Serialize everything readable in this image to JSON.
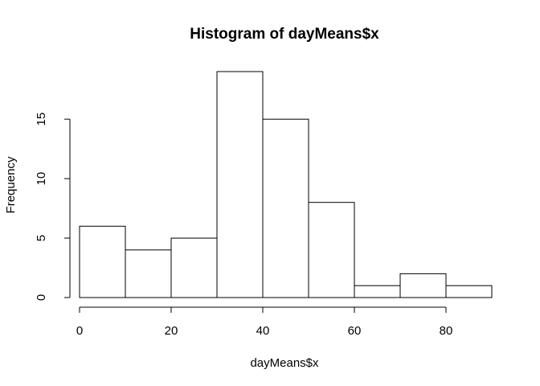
{
  "chart_data": {
    "type": "bar",
    "title": "Histogram of dayMeans$x",
    "xlabel": "dayMeans$x",
    "ylabel": "Frequency",
    "bins": [
      {
        "from": 0,
        "to": 10,
        "count": 6
      },
      {
        "from": 10,
        "to": 20,
        "count": 4
      },
      {
        "from": 20,
        "to": 30,
        "count": 5
      },
      {
        "from": 30,
        "to": 40,
        "count": 19
      },
      {
        "from": 40,
        "to": 50,
        "count": 15
      },
      {
        "from": 50,
        "to": 60,
        "count": 8
      },
      {
        "from": 60,
        "to": 70,
        "count": 1
      },
      {
        "from": 70,
        "to": 80,
        "count": 2
      },
      {
        "from": 80,
        "to": 90,
        "count": 1
      }
    ],
    "xlim": [
      0,
      90
    ],
    "ylim": [
      0,
      19
    ],
    "x_ticks": [
      0,
      20,
      40,
      60,
      80
    ],
    "y_ticks": [
      0,
      5,
      10,
      15
    ],
    "grid": false,
    "legend": "none"
  }
}
